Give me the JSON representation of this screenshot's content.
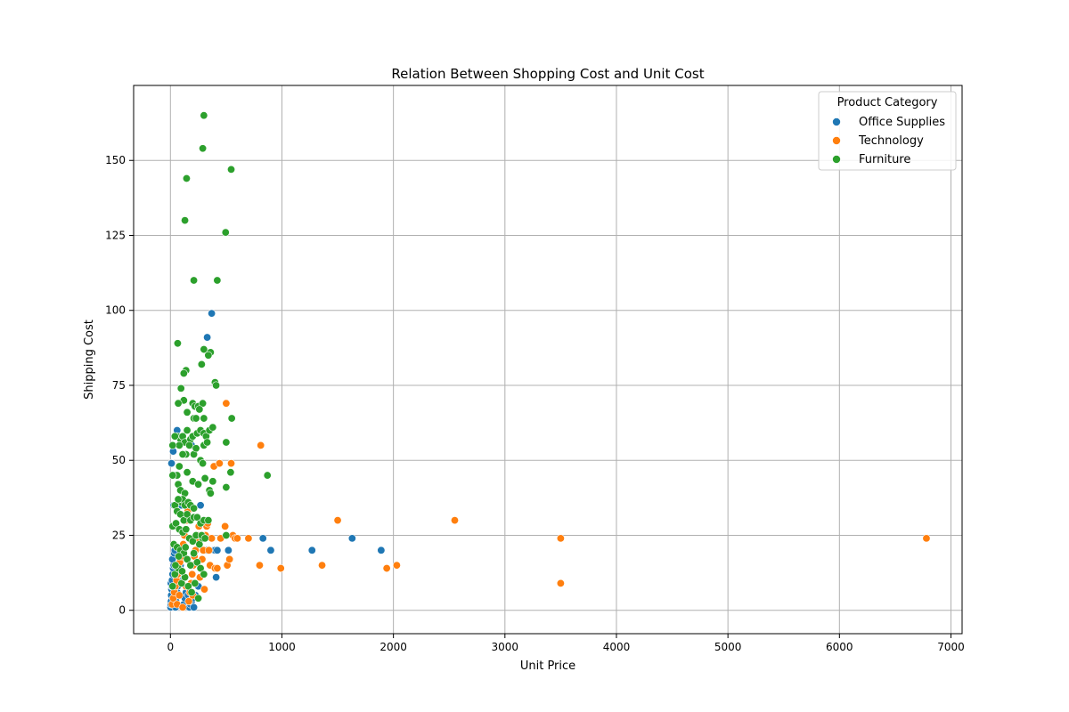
{
  "chart_data": {
    "type": "scatter",
    "title": "Relation Between Shopping Cost and Unit Cost",
    "xlabel": "Unit Price",
    "ylabel": "Shipping Cost",
    "xlim": [
      -330,
      7100
    ],
    "ylim": [
      -7.8,
      175
    ],
    "xticks": [
      0,
      1000,
      2000,
      3000,
      4000,
      5000,
      6000,
      7000
    ],
    "yticks": [
      0,
      25,
      50,
      75,
      100,
      125,
      150
    ],
    "grid": true,
    "legend": {
      "title": "Product Category",
      "placement": "top-right"
    },
    "colors": {
      "Office Supplies": "#1f77b4",
      "Technology": "#ff7f0e",
      "Furniture": "#2ca02c"
    },
    "series": [
      {
        "name": "Office Supplies",
        "points": [
          [
            2,
            1
          ],
          [
            4,
            2
          ],
          [
            6,
            3
          ],
          [
            8,
            5
          ],
          [
            10,
            7
          ],
          [
            12,
            8
          ],
          [
            5,
            9
          ],
          [
            15,
            10
          ],
          [
            20,
            12
          ],
          [
            25,
            14
          ],
          [
            30,
            15
          ],
          [
            18,
            17
          ],
          [
            35,
            19
          ],
          [
            40,
            20
          ],
          [
            45,
            1
          ],
          [
            50,
            3
          ],
          [
            55,
            5
          ],
          [
            60,
            6
          ],
          [
            65,
            8
          ],
          [
            70,
            10
          ],
          [
            75,
            12
          ],
          [
            80,
            13
          ],
          [
            90,
            15
          ],
          [
            100,
            18
          ],
          [
            110,
            20
          ],
          [
            120,
            2
          ],
          [
            130,
            4
          ],
          [
            140,
            6
          ],
          [
            150,
            8
          ],
          [
            160,
            5
          ],
          [
            170,
            1
          ],
          [
            180,
            2
          ],
          [
            190,
            3
          ],
          [
            200,
            4
          ],
          [
            210,
            1
          ],
          [
            225,
            5
          ],
          [
            250,
            8
          ],
          [
            270,
            35
          ],
          [
            290,
            24
          ],
          [
            300,
            20
          ],
          [
            330,
            20
          ],
          [
            370,
            99
          ],
          [
            330,
            91
          ],
          [
            390,
            20
          ],
          [
            400,
            20
          ],
          [
            410,
            11
          ],
          [
            420,
            20
          ],
          [
            215,
            68
          ],
          [
            190,
            55
          ],
          [
            60,
            60
          ],
          [
            100,
            35
          ],
          [
            30,
            35
          ],
          [
            45,
            45
          ],
          [
            10,
            49
          ],
          [
            25,
            53
          ],
          [
            520,
            20
          ],
          [
            830,
            24
          ],
          [
            900,
            20
          ],
          [
            1270,
            20
          ],
          [
            1630,
            24
          ],
          [
            1890,
            20
          ]
        ]
      },
      {
        "name": "Technology",
        "points": [
          [
            15,
            2
          ],
          [
            25,
            4
          ],
          [
            35,
            6
          ],
          [
            45,
            8
          ],
          [
            55,
            10
          ],
          [
            65,
            12
          ],
          [
            75,
            14
          ],
          [
            85,
            16
          ],
          [
            95,
            18
          ],
          [
            105,
            20
          ],
          [
            115,
            22
          ],
          [
            125,
            25
          ],
          [
            135,
            27
          ],
          [
            145,
            30
          ],
          [
            155,
            33
          ],
          [
            165,
            3
          ],
          [
            175,
            6
          ],
          [
            185,
            9
          ],
          [
            195,
            12
          ],
          [
            205,
            15
          ],
          [
            215,
            18
          ],
          [
            225,
            20
          ],
          [
            235,
            23
          ],
          [
            245,
            25
          ],
          [
            255,
            28
          ],
          [
            265,
            11
          ],
          [
            275,
            14
          ],
          [
            285,
            17
          ],
          [
            295,
            20
          ],
          [
            305,
            7
          ],
          [
            315,
            25
          ],
          [
            325,
            28
          ],
          [
            335,
            29
          ],
          [
            345,
            20
          ],
          [
            355,
            15
          ],
          [
            370,
            24
          ],
          [
            390,
            48
          ],
          [
            400,
            14
          ],
          [
            420,
            14
          ],
          [
            440,
            49
          ],
          [
            450,
            24
          ],
          [
            490,
            28
          ],
          [
            500,
            69
          ],
          [
            510,
            15
          ],
          [
            530,
            17
          ],
          [
            545,
            49
          ],
          [
            560,
            25
          ],
          [
            580,
            24
          ],
          [
            600,
            24
          ],
          [
            700,
            24
          ],
          [
            800,
            15
          ],
          [
            810,
            55
          ],
          [
            990,
            14
          ],
          [
            1360,
            15
          ],
          [
            1500,
            30
          ],
          [
            1940,
            14
          ],
          [
            2030,
            15
          ],
          [
            2550,
            30
          ],
          [
            3500,
            24
          ],
          [
            3500,
            9
          ],
          [
            6780,
            24
          ],
          [
            80,
            5
          ],
          [
            60,
            2
          ],
          [
            110,
            1
          ],
          [
            140,
            8
          ],
          [
            200,
            5
          ]
        ]
      },
      {
        "name": "Furniture",
        "points": [
          [
            300,
            165
          ],
          [
            290,
            154
          ],
          [
            545,
            147
          ],
          [
            145,
            144
          ],
          [
            130,
            130
          ],
          [
            495,
            126
          ],
          [
            210,
            110
          ],
          [
            420,
            110
          ],
          [
            65,
            89
          ],
          [
            300,
            87
          ],
          [
            360,
            86
          ],
          [
            340,
            85
          ],
          [
            280,
            82
          ],
          [
            140,
            80
          ],
          [
            120,
            79
          ],
          [
            95,
            74
          ],
          [
            400,
            76
          ],
          [
            410,
            75
          ],
          [
            120,
            70
          ],
          [
            70,
            69
          ],
          [
            200,
            69
          ],
          [
            220,
            68
          ],
          [
            250,
            68
          ],
          [
            290,
            69
          ],
          [
            150,
            66
          ],
          [
            260,
            67
          ],
          [
            550,
            64
          ],
          [
            210,
            64
          ],
          [
            230,
            64
          ],
          [
            300,
            64
          ],
          [
            60,
            58
          ],
          [
            90,
            57
          ],
          [
            110,
            58
          ],
          [
            130,
            56
          ],
          [
            150,
            60
          ],
          [
            180,
            57
          ],
          [
            200,
            58
          ],
          [
            240,
            59
          ],
          [
            270,
            60
          ],
          [
            300,
            59
          ],
          [
            320,
            58
          ],
          [
            350,
            60
          ],
          [
            380,
            61
          ],
          [
            500,
            56
          ],
          [
            80,
            55
          ],
          [
            20,
            55
          ],
          [
            40,
            58
          ],
          [
            170,
            55
          ],
          [
            140,
            52
          ],
          [
            110,
            52
          ],
          [
            210,
            52
          ],
          [
            230,
            54
          ],
          [
            270,
            50
          ],
          [
            300,
            55
          ],
          [
            330,
            56
          ],
          [
            290,
            49
          ],
          [
            80,
            48
          ],
          [
            60,
            45
          ],
          [
            20,
            45
          ],
          [
            150,
            46
          ],
          [
            540,
            46
          ],
          [
            870,
            45
          ],
          [
            200,
            43
          ],
          [
            250,
            42
          ],
          [
            310,
            44
          ],
          [
            380,
            43
          ],
          [
            500,
            41
          ],
          [
            70,
            42
          ],
          [
            90,
            40
          ],
          [
            130,
            39
          ],
          [
            350,
            40
          ],
          [
            360,
            39
          ],
          [
            100,
            36
          ],
          [
            110,
            37
          ],
          [
            130,
            35
          ],
          [
            160,
            36
          ],
          [
            180,
            35
          ],
          [
            210,
            34
          ],
          [
            40,
            35
          ],
          [
            70,
            37
          ],
          [
            60,
            33
          ],
          [
            90,
            32
          ],
          [
            120,
            30
          ],
          [
            150,
            32
          ],
          [
            180,
            30
          ],
          [
            210,
            31
          ],
          [
            240,
            31
          ],
          [
            270,
            29
          ],
          [
            300,
            30
          ],
          [
            340,
            30
          ],
          [
            20,
            28
          ],
          [
            50,
            29
          ],
          [
            80,
            27
          ],
          [
            110,
            26
          ],
          [
            140,
            27
          ],
          [
            170,
            24
          ],
          [
            200,
            23
          ],
          [
            230,
            25
          ],
          [
            260,
            22
          ],
          [
            290,
            24
          ],
          [
            30,
            22
          ],
          [
            60,
            21
          ],
          [
            90,
            20
          ],
          [
            120,
            19
          ],
          [
            150,
            17
          ],
          [
            180,
            15
          ],
          [
            210,
            19
          ],
          [
            240,
            16
          ],
          [
            270,
            14
          ],
          [
            300,
            12
          ],
          [
            40,
            12
          ],
          [
            70,
            14
          ],
          [
            100,
            9
          ],
          [
            130,
            11
          ],
          [
            160,
            8
          ],
          [
            190,
            6
          ],
          [
            220,
            9
          ],
          [
            250,
            4
          ],
          [
            500,
            25
          ],
          [
            280,
            25
          ],
          [
            310,
            24
          ],
          [
            20,
            8
          ],
          [
            45,
            15
          ],
          [
            75,
            18
          ],
          [
            105,
            13
          ],
          [
            135,
            21
          ]
        ]
      }
    ]
  }
}
